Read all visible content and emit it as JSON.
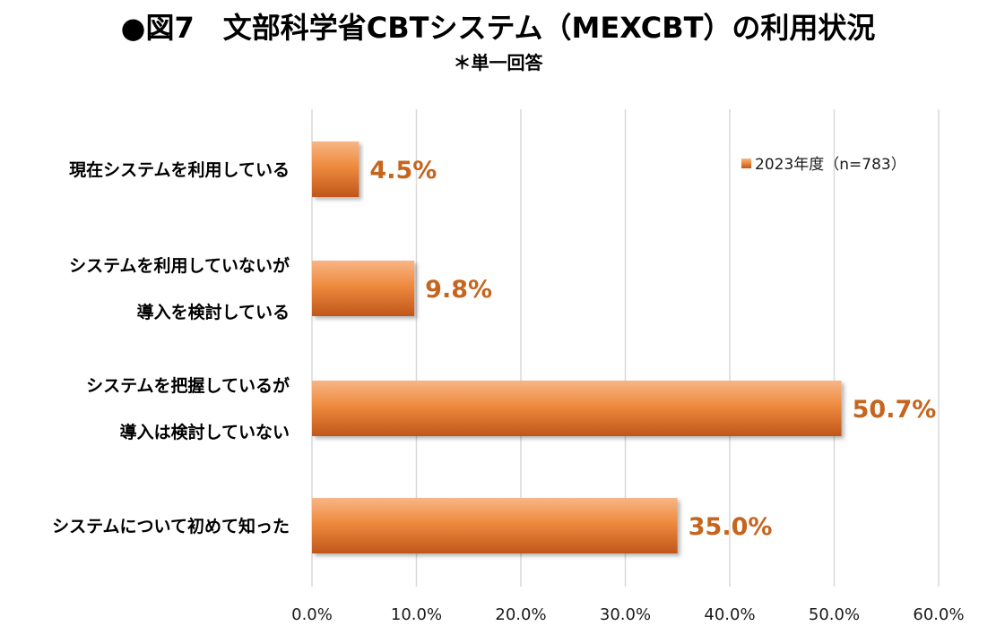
{
  "chart_data": {
    "type": "bar",
    "orientation": "horizontal",
    "title": "●図7　文部科学省CBTシステム（MEXCBT）の利用状況",
    "subtitle": "＊単一回答",
    "categories": [
      [
        "現在システムを利用している"
      ],
      [
        "システムを利用していないが",
        "導入を検討している"
      ],
      [
        "システムを把握しているが",
        "導入は検討していない"
      ],
      [
        "システムについて初めて知った"
      ]
    ],
    "series": [
      {
        "name": "2023年度（n=783）",
        "values": [
          4.5,
          9.8,
          50.7,
          35.0
        ],
        "value_labels": [
          "4.5%",
          "9.8%",
          "50.7%",
          "35.0%"
        ]
      }
    ],
    "xlim": [
      0,
      60
    ],
    "ticks": [
      0,
      10,
      20,
      30,
      40,
      50,
      60
    ],
    "tick_labels": [
      "0.0%",
      "10.0%",
      "20.0%",
      "30.0%",
      "40.0%",
      "50.0%",
      "60.0%"
    ],
    "grid": "vertical",
    "legend_position": "top-right"
  },
  "colors": {
    "bar_light": "#f7b585",
    "bar_mid": "#ee8a3e",
    "bar_dark": "#c0561b",
    "data_label": "#c5651e",
    "grid": "#d9d9d9"
  }
}
